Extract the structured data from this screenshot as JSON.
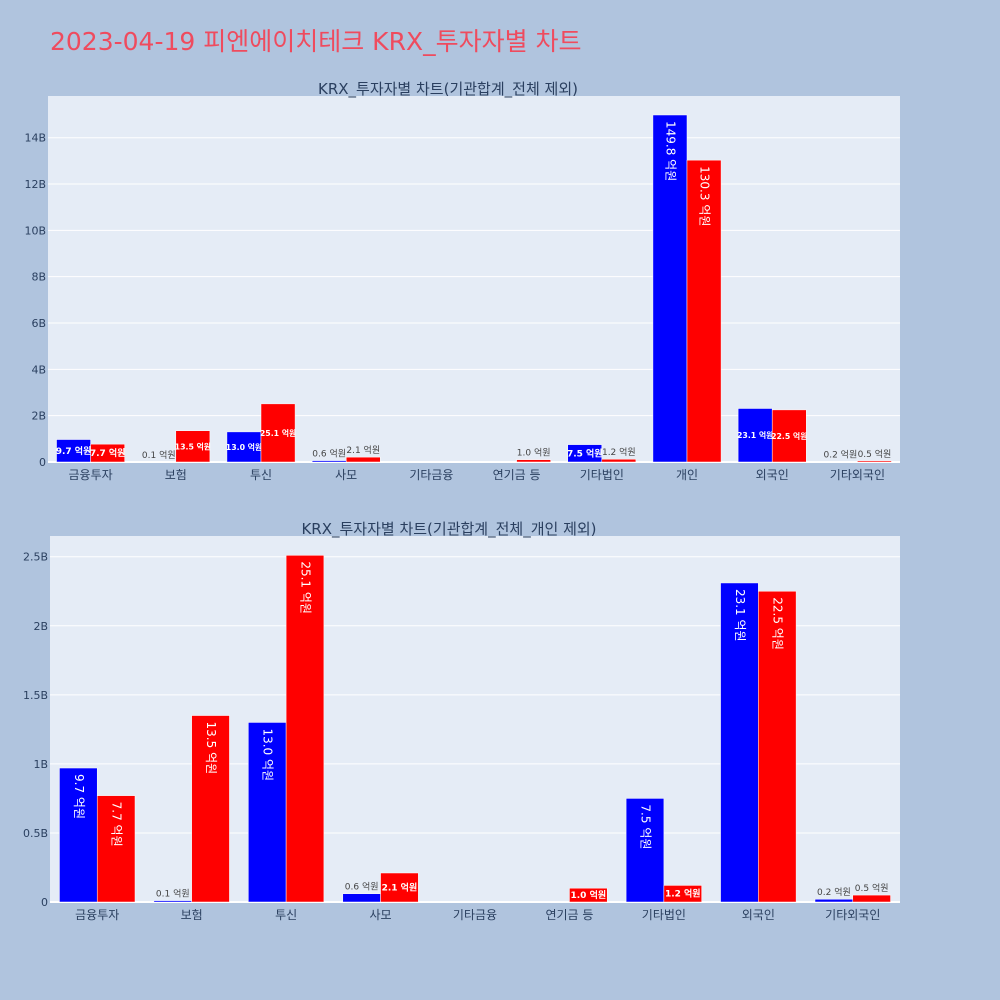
{
  "title": "2023-04-19 피엔에이치테크 KRX_투자자별 차트",
  "colors": {
    "series_a": "#0000ff",
    "series_b": "#ff0000",
    "background": "#b0c4de",
    "plot_bg": "#e5ecf6",
    "title": "#ef4b5e"
  },
  "chart_data": [
    {
      "type": "bar",
      "title": "KRX_투자자별 차트(기관합계_전체 제외)",
      "categories": [
        "금융투자",
        "보험",
        "투신",
        "사모",
        "기타금융",
        "연기금 등",
        "기타법인",
        "개인",
        "외국인",
        "기타외국인"
      ],
      "series": [
        {
          "values": [
            0.97,
            0.01,
            1.3,
            0.06,
            0,
            0,
            0.75,
            14.98,
            2.31,
            0.02
          ],
          "labels": [
            "9.7 억원",
            "0.1 억원",
            "13.0 억원",
            "0.6 억원",
            "",
            "",
            "7.5 억원",
            "149.8 억원",
            "23.1 억원",
            "0.2 억원"
          ]
        },
        {
          "values": [
            0.77,
            1.35,
            2.51,
            0.21,
            0,
            0.1,
            0.12,
            13.03,
            2.25,
            0.05
          ],
          "labels": [
            "7.7 억원",
            "13.5 억원",
            "25.1 억원",
            "2.1 억원",
            "",
            "1.0 억원",
            "1.2 억원",
            "130.3 억원",
            "22.5 억원",
            "0.5 억원"
          ]
        }
      ],
      "yticks": [
        0,
        2,
        4,
        6,
        8,
        10,
        12,
        14
      ],
      "ytick_labels": [
        "0",
        "2B",
        "4B",
        "6B",
        "8B",
        "10B",
        "12B",
        "14B"
      ],
      "ylim": [
        0,
        15.8
      ],
      "grid": true
    },
    {
      "type": "bar",
      "title": "KRX_투자자별 차트(기관합계_전체_개인 제외)",
      "categories": [
        "금융투자",
        "보험",
        "투신",
        "사모",
        "기타금융",
        "연기금 등",
        "기타법인",
        "외국인",
        "기타외국인"
      ],
      "series": [
        {
          "values": [
            0.97,
            0.01,
            1.3,
            0.06,
            0,
            0,
            0.75,
            2.31,
            0.02
          ],
          "labels": [
            "9.7 억원",
            "0.1 억원",
            "13.0 억원",
            "0.6 억원",
            "",
            "",
            "7.5 억원",
            "23.1 억원",
            "0.2 억원"
          ]
        },
        {
          "values": [
            0.77,
            1.35,
            2.51,
            0.21,
            0,
            0.1,
            0.12,
            2.25,
            0.05
          ],
          "labels": [
            "7.7 억원",
            "13.5 억원",
            "25.1 억원",
            "2.1 억원",
            "",
            "1.0 억원",
            "1.2 억원",
            "22.5 억원",
            "0.5 억원"
          ]
        }
      ],
      "yticks": [
        0,
        0.5,
        1,
        1.5,
        2,
        2.5
      ],
      "ytick_labels": [
        "0",
        "0.5B",
        "1B",
        "1.5B",
        "2B",
        "2.5B"
      ],
      "ylim": [
        0,
        2.65
      ],
      "grid": true
    }
  ]
}
